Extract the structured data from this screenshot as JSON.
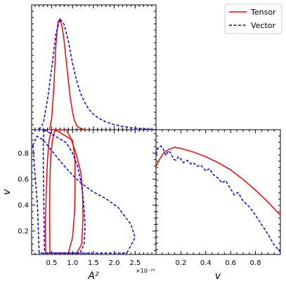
{
  "chart_data": [
    {
      "type": "line",
      "panel": "A2 marginal posterior (top-left)",
      "x_range": [
        0.02,
        3.0
      ],
      "x_scale_label": "×10⁻²⁹",
      "y_ticks_labeled": false,
      "series": [
        {
          "name": "Tensor",
          "color": "#ff0000",
          "dash": "solid",
          "x": [
            0.45,
            0.5,
            0.55,
            0.6,
            0.65,
            0.7,
            0.75,
            0.8,
            0.85,
            0.9,
            0.95,
            1.0,
            1.05,
            1.1,
            1.15,
            1.2,
            1.3
          ],
          "y": [
            0.0,
            0.1,
            0.37,
            0.75,
            0.97,
            1.0,
            0.93,
            0.8,
            0.62,
            0.44,
            0.28,
            0.16,
            0.08,
            0.04,
            0.02,
            0.01,
            0.0
          ]
        },
        {
          "name": "Vector",
          "color": "#0000ff",
          "dash": "dashed",
          "x": [
            0.2,
            0.3,
            0.4,
            0.5,
            0.6,
            0.7,
            0.8,
            0.9,
            1.0,
            1.1,
            1.2,
            1.3,
            1.4,
            1.5,
            1.6,
            1.8,
            2.0,
            2.2,
            2.4,
            2.6,
            2.8,
            3.0
          ],
          "y": [
            0.0,
            0.06,
            0.27,
            0.55,
            0.86,
            1.0,
            0.95,
            0.8,
            0.6,
            0.44,
            0.32,
            0.24,
            0.18,
            0.14,
            0.11,
            0.07,
            0.045,
            0.03,
            0.018,
            0.01,
            0.005,
            0.0
          ]
        }
      ]
    },
    {
      "type": "contour",
      "panel": "A2 vs v joint posterior (bottom-left)",
      "xlabel": "A²",
      "ylabel": "v",
      "x_range": [
        0.02,
        3.0
      ],
      "y_range": [
        0.02,
        0.98
      ],
      "x_ticks": [
        0.5,
        1.0,
        1.5,
        2.0,
        2.5
      ],
      "x_tick_labels": [
        "0.5",
        "1.0",
        "1.5",
        "2.0",
        "2.5"
      ],
      "y_ticks": [
        0.2,
        0.4,
        0.6,
        0.8
      ],
      "y_tick_labels": [
        "0.2",
        "0.4",
        "0.6",
        "0.8"
      ],
      "x_scale_label": "×10⁻²⁹",
      "series": [
        {
          "name": "Tensor",
          "color": "#ff0000",
          "dash": "solid",
          "contours": [
            {
              "level": "inner",
              "x": [
                0.58,
                0.52,
                0.48,
                0.46,
                0.45,
                0.46,
                0.58,
                0.65,
                0.78,
                0.9,
                1.0,
                1.05,
                1.06,
                1.06,
                1.0
              ],
              "y": [
                0.98,
                0.9,
                0.78,
                0.6,
                0.35,
                0.03,
                0.03,
                0.03,
                0.03,
                0.03,
                0.15,
                0.35,
                0.55,
                0.75,
                0.9
              ]
            },
            {
              "level": "outer",
              "x": [
                0.5,
                0.44,
                0.4,
                0.37,
                0.35,
                0.36,
                0.5,
                0.7,
                0.95,
                1.1,
                1.22,
                1.25,
                1.24,
                1.2,
                1.08,
                0.95,
                0.85
              ],
              "y": [
                0.98,
                0.9,
                0.75,
                0.5,
                0.25,
                0.03,
                0.03,
                0.03,
                0.03,
                0.03,
                0.1,
                0.3,
                0.5,
                0.65,
                0.8,
                0.92,
                0.98
              ]
            }
          ]
        },
        {
          "name": "Vector",
          "color": "#0000ff",
          "dash": "dashed",
          "contours": [
            {
              "level": "inner",
              "x": [
                0.32,
                0.3,
                0.3,
                0.31,
                0.33,
                0.5,
                0.8,
                1.0,
                1.18,
                1.28,
                1.3,
                1.27,
                1.22,
                1.12,
                1.0,
                0.85
              ],
              "y": [
                0.98,
                0.9,
                0.7,
                0.45,
                0.03,
                0.03,
                0.03,
                0.03,
                0.03,
                0.1,
                0.25,
                0.4,
                0.55,
                0.7,
                0.8,
                0.88
              ]
            },
            {
              "level": "outer",
              "x": [
                0.05,
                0.08,
                0.12,
                0.16,
                0.18,
                0.2,
                0.5,
                1.0,
                1.8,
                2.3,
                2.5,
                2.4,
                2.1,
                1.8,
                1.5,
                1.2,
                1.0,
                0.75,
                0.55,
                0.3,
                0.15
              ],
              "y": [
                0.86,
                0.72,
                0.56,
                0.4,
                0.22,
                0.03,
                0.03,
                0.03,
                0.03,
                0.03,
                0.15,
                0.25,
                0.38,
                0.45,
                0.5,
                0.57,
                0.63,
                0.72,
                0.8,
                0.9,
                0.93
              ]
            }
          ]
        }
      ]
    },
    {
      "type": "line",
      "panel": "v marginal posterior (bottom-right)",
      "xlabel": "v",
      "x_range": [
        0.0,
        1.0
      ],
      "x_ticks": [
        0.2,
        0.4,
        0.6,
        0.8
      ],
      "x_tick_labels": [
        "0.2",
        "0.4",
        "0.6",
        "0.8"
      ],
      "y_ticks_labeled": false,
      "series": [
        {
          "name": "Tensor",
          "color": "#ff0000",
          "dash": "solid",
          "x": [
            0.0,
            0.03,
            0.06,
            0.1,
            0.15,
            0.2,
            0.3,
            0.4,
            0.5,
            0.6,
            0.7,
            0.8,
            0.9,
            1.0
          ],
          "y": [
            0.74,
            0.8,
            0.85,
            0.88,
            0.9,
            0.89,
            0.86,
            0.82,
            0.77,
            0.71,
            0.63,
            0.54,
            0.44,
            0.33
          ]
        },
        {
          "name": "Vector",
          "color": "#0000ff",
          "dash": "dashed",
          "x": [
            0.0,
            0.02,
            0.04,
            0.06,
            0.08,
            0.1,
            0.12,
            0.14,
            0.16,
            0.18,
            0.2,
            0.22,
            0.25,
            0.28,
            0.3,
            0.33,
            0.36,
            0.4,
            0.43,
            0.46,
            0.5,
            0.53,
            0.56,
            0.6,
            0.63,
            0.66,
            0.7,
            0.75,
            0.8,
            0.85,
            0.9,
            0.95,
            1.0
          ],
          "y": [
            0.84,
            0.9,
            0.91,
            0.88,
            0.83,
            0.87,
            0.85,
            0.8,
            0.79,
            0.82,
            0.8,
            0.77,
            0.79,
            0.76,
            0.77,
            0.74,
            0.75,
            0.7,
            0.72,
            0.67,
            0.64,
            0.6,
            0.62,
            0.55,
            0.5,
            0.52,
            0.45,
            0.4,
            0.33,
            0.25,
            0.17,
            0.08,
            0.02
          ]
        }
      ]
    }
  ],
  "legend": {
    "placement": "top-right",
    "entries": [
      {
        "label": "Tensor",
        "color": "#ff0000",
        "dash": "solid"
      },
      {
        "label": "Vector",
        "color": "#0000ff",
        "dash": "dashed"
      }
    ]
  }
}
